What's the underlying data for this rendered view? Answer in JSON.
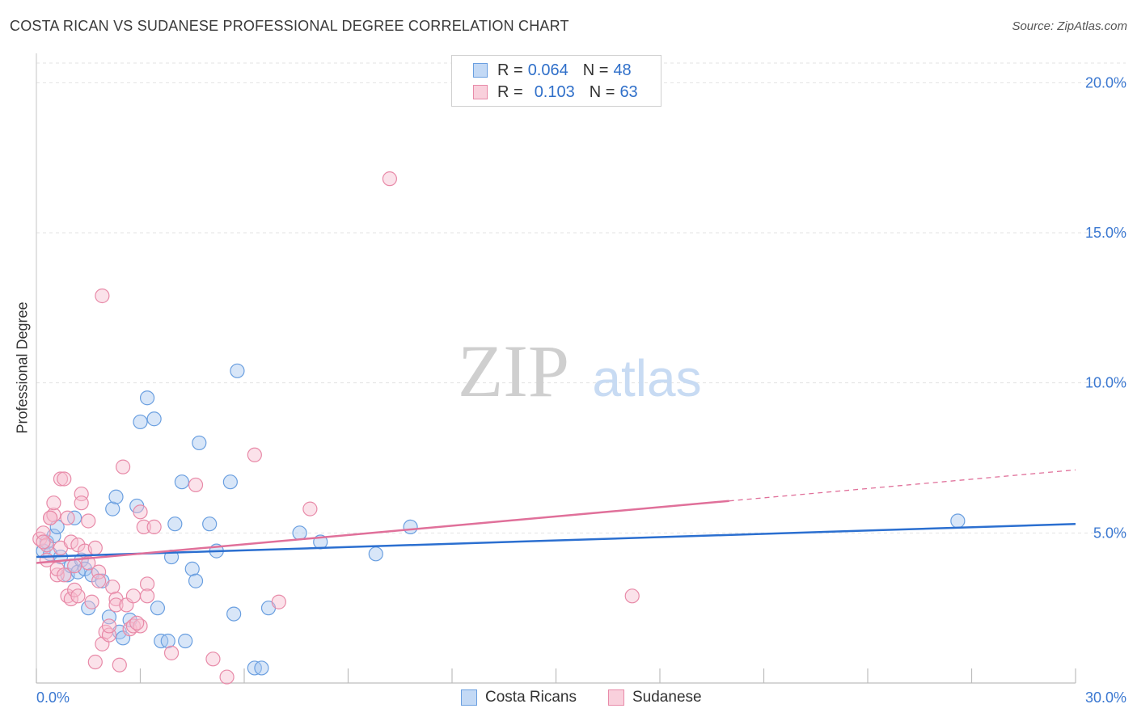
{
  "header": {
    "title": "COSTA RICAN VS SUDANESE PROFESSIONAL DEGREE CORRELATION CHART",
    "source": "Source: ZipAtlas.com"
  },
  "watermark": {
    "zip": "ZIP",
    "atlas": "atlas"
  },
  "legend": {
    "rows": [
      {
        "r_label": "R =",
        "r_value": "0.064",
        "n_label": "N =",
        "n_value": "48",
        "color": "#a8c8f0",
        "border": "#6a9fe0"
      },
      {
        "r_label": "R =",
        "r_value": "0.103",
        "n_label": "N =",
        "n_value": "63",
        "color": "#f7bfd0",
        "border": "#e88aa8"
      }
    ]
  },
  "bottom_legend": {
    "items": [
      "Costa Ricans",
      "Sudanese"
    ]
  },
  "chart_data": {
    "type": "scatter",
    "title": "COSTA RICAN VS SUDANESE PROFESSIONAL DEGREE CORRELATION CHART",
    "xlabel": "",
    "ylabel": "Professional Degree",
    "xlim": [
      0,
      30
    ],
    "ylim": [
      0,
      20.5
    ],
    "x_tick_labels": [
      "0.0%",
      "30.0%"
    ],
    "y_ticks": [
      5,
      10,
      15,
      20
    ],
    "y_tick_labels": [
      "5.0%",
      "10.0%",
      "15.0%",
      "20.0%"
    ],
    "grid": true,
    "legend_position": "top-center",
    "series": [
      {
        "name": "Costa Ricans",
        "color": "#6a9fe0",
        "fill": "#a8c8f0",
        "trend": {
          "x": [
            0,
            30
          ],
          "y": [
            4.2,
            5.3
          ],
          "dashed_from": null
        },
        "points": [
          [
            0.2,
            4.4
          ],
          [
            0.3,
            4.7
          ],
          [
            0.4,
            4.3
          ],
          [
            0.5,
            4.9
          ],
          [
            0.6,
            5.2
          ],
          [
            0.7,
            4.2
          ],
          [
            0.9,
            3.6
          ],
          [
            1.0,
            3.9
          ],
          [
            1.1,
            5.5
          ],
          [
            1.2,
            3.7
          ],
          [
            1.3,
            4.1
          ],
          [
            1.4,
            3.8
          ],
          [
            1.5,
            2.5
          ],
          [
            1.6,
            3.6
          ],
          [
            1.9,
            3.4
          ],
          [
            2.1,
            2.2
          ],
          [
            2.2,
            5.8
          ],
          [
            2.3,
            6.2
          ],
          [
            2.4,
            1.7
          ],
          [
            2.5,
            1.5
          ],
          [
            2.7,
            2.1
          ],
          [
            2.9,
            5.9
          ],
          [
            3.0,
            8.7
          ],
          [
            3.2,
            9.5
          ],
          [
            3.4,
            8.8
          ],
          [
            3.5,
            2.5
          ],
          [
            3.6,
            1.4
          ],
          [
            3.8,
            1.4
          ],
          [
            3.9,
            4.2
          ],
          [
            4.0,
            5.3
          ],
          [
            4.2,
            6.7
          ],
          [
            4.3,
            1.4
          ],
          [
            4.5,
            3.8
          ],
          [
            4.6,
            3.4
          ],
          [
            4.7,
            8.0
          ],
          [
            5.0,
            5.3
          ],
          [
            5.2,
            4.4
          ],
          [
            5.6,
            6.7
          ],
          [
            5.7,
            2.3
          ],
          [
            5.8,
            10.4
          ],
          [
            6.3,
            0.5
          ],
          [
            6.5,
            0.5
          ],
          [
            6.7,
            2.5
          ],
          [
            7.6,
            5.0
          ],
          [
            8.2,
            4.7
          ],
          [
            9.8,
            4.3
          ],
          [
            10.8,
            5.2
          ],
          [
            26.6,
            5.4
          ]
        ]
      },
      {
        "name": "Sudanese",
        "color": "#e88aa8",
        "fill": "#f7bfd0",
        "trend": {
          "x": [
            0,
            30
          ],
          "y": [
            4.0,
            7.1
          ],
          "dashed_from": 20
        },
        "points": [
          [
            0.1,
            4.8
          ],
          [
            0.2,
            5.0
          ],
          [
            0.3,
            4.1
          ],
          [
            0.3,
            4.6
          ],
          [
            0.4,
            5.5
          ],
          [
            0.5,
            5.6
          ],
          [
            0.5,
            6.0
          ],
          [
            0.6,
            3.6
          ],
          [
            0.6,
            3.8
          ],
          [
            0.7,
            4.5
          ],
          [
            0.7,
            6.8
          ],
          [
            0.8,
            3.6
          ],
          [
            0.8,
            6.8
          ],
          [
            0.9,
            5.5
          ],
          [
            0.9,
            2.9
          ],
          [
            1.0,
            2.8
          ],
          [
            1.0,
            4.7
          ],
          [
            1.1,
            3.1
          ],
          [
            1.2,
            2.9
          ],
          [
            1.2,
            4.6
          ],
          [
            1.3,
            6.3
          ],
          [
            1.3,
            6.0
          ],
          [
            1.4,
            4.4
          ],
          [
            1.5,
            4.0
          ],
          [
            1.5,
            5.4
          ],
          [
            1.6,
            2.7
          ],
          [
            1.7,
            0.7
          ],
          [
            1.7,
            4.5
          ],
          [
            1.8,
            3.7
          ],
          [
            1.9,
            1.3
          ],
          [
            1.9,
            12.9
          ],
          [
            2.0,
            1.7
          ],
          [
            2.1,
            1.6
          ],
          [
            2.1,
            1.9
          ],
          [
            2.2,
            3.2
          ],
          [
            2.3,
            2.8
          ],
          [
            2.3,
            2.6
          ],
          [
            2.4,
            0.6
          ],
          [
            2.5,
            7.2
          ],
          [
            2.6,
            2.6
          ],
          [
            2.7,
            1.8
          ],
          [
            2.8,
            1.9
          ],
          [
            2.8,
            2.9
          ],
          [
            3.0,
            5.7
          ],
          [
            3.0,
            1.9
          ],
          [
            3.1,
            5.2
          ],
          [
            3.2,
            3.3
          ],
          [
            3.2,
            2.9
          ],
          [
            3.4,
            5.2
          ],
          [
            3.9,
            1.0
          ],
          [
            4.6,
            6.6
          ],
          [
            5.1,
            0.8
          ],
          [
            5.5,
            0.2
          ],
          [
            6.3,
            7.6
          ],
          [
            7.0,
            2.7
          ],
          [
            7.9,
            5.8
          ],
          [
            10.2,
            16.8
          ],
          [
            17.2,
            2.9
          ],
          [
            0.2,
            4.7
          ],
          [
            0.4,
            5.5
          ],
          [
            1.1,
            3.9
          ],
          [
            1.8,
            3.4
          ],
          [
            2.9,
            2.0
          ]
        ]
      }
    ]
  }
}
